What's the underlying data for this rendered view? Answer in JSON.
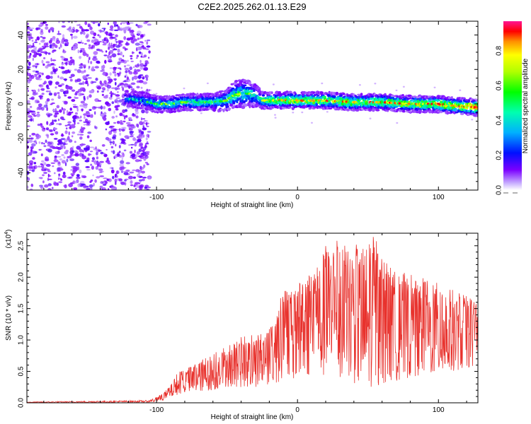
{
  "chart_data": [
    {
      "type": "heatmap",
      "title": "C2E2.2025.262.01.13.E29",
      "xlabel": "Height of straight line (km)",
      "ylabel": "Frequency (Hz)",
      "xlim": [
        -192,
        128
      ],
      "ylim": [
        -50,
        48
      ],
      "xticks": [
        -100,
        0,
        100
      ],
      "yticks": [
        -40,
        -20,
        0,
        20,
        40
      ],
      "colorbar": {
        "label": "Normalized spectral amplitude",
        "range": [
          0.0,
          0.97
        ],
        "ticks": [
          0.0,
          0.2,
          0.4,
          0.6,
          0.8
        ]
      },
      "noise_region": {
        "x": [
          -192,
          -105
        ],
        "y": [
          -50,
          48
        ]
      },
      "ridge": {
        "x": [
          -120,
          -110,
          -100,
          -90,
          -80,
          -70,
          -60,
          -50,
          -45,
          -40,
          -35,
          -30,
          -25,
          -20,
          -10,
          0,
          20,
          40,
          60,
          80,
          100,
          110,
          128
        ],
        "y": [
          3,
          2,
          0,
          0,
          1,
          1,
          1,
          2,
          5,
          6,
          6,
          5,
          2,
          2,
          2,
          2,
          2,
          1,
          1,
          0,
          0,
          -1,
          -2
        ],
        "width": [
          3,
          3,
          3,
          3,
          3,
          3,
          3,
          4,
          5,
          5,
          5,
          4,
          3,
          3,
          3,
          3,
          3,
          3,
          3,
          3,
          3,
          3,
          3
        ],
        "amplitude": [
          0.3,
          0.35,
          0.45,
          0.5,
          0.5,
          0.5,
          0.45,
          0.45,
          0.5,
          0.55,
          0.5,
          0.45,
          0.55,
          0.65,
          0.7,
          0.75,
          0.75,
          0.7,
          0.7,
          0.75,
          0.8,
          0.85,
          0.9
        ]
      }
    },
    {
      "type": "line",
      "xlabel": "Height of straight line (km)",
      "ylabel": "SNR (10 * v/v)",
      "scale_label": "(x10",
      "scale_exp": "4",
      "xlim": [
        -192,
        128
      ],
      "ylim": [
        0,
        27000
      ],
      "xticks": [
        -100,
        0,
        100
      ],
      "yticks": [
        0,
        5000,
        10000,
        15000,
        20000,
        25000
      ],
      "ytick_labels": [
        "0.0",
        "0.5",
        "1.0",
        "1.5",
        "2.0",
        "2.5"
      ],
      "color": "#e8322d",
      "envelope": {
        "x": [
          -192,
          -105,
          -100,
          -95,
          -90,
          -85,
          -80,
          -70,
          -60,
          -50,
          -40,
          -30,
          -20,
          -15,
          -10,
          -5,
          0,
          5,
          10,
          20,
          25,
          30,
          40,
          50,
          55,
          60,
          70,
          80,
          90,
          100,
          110,
          120,
          128
        ],
        "min": [
          20,
          60,
          200,
          400,
          900,
          1300,
          1500,
          1800,
          2000,
          2500,
          2500,
          2500,
          3000,
          3000,
          4000,
          3500,
          4000,
          4000,
          4500,
          4000,
          3500,
          3000,
          3000,
          2500,
          2500,
          3000,
          3500,
          4000,
          4500,
          4500,
          5000,
          5500,
          6000
        ],
        "max": [
          150,
          400,
          900,
          1600,
          2800,
          5000,
          5300,
          6500,
          8000,
          9000,
          10500,
          11000,
          12000,
          14000,
          18500,
          17500,
          19000,
          20000,
          21000,
          25000,
          26500,
          26000,
          25000,
          26000,
          27000,
          23000,
          21000,
          20500,
          20000,
          19000,
          18000,
          17000,
          16000
        ]
      }
    }
  ]
}
